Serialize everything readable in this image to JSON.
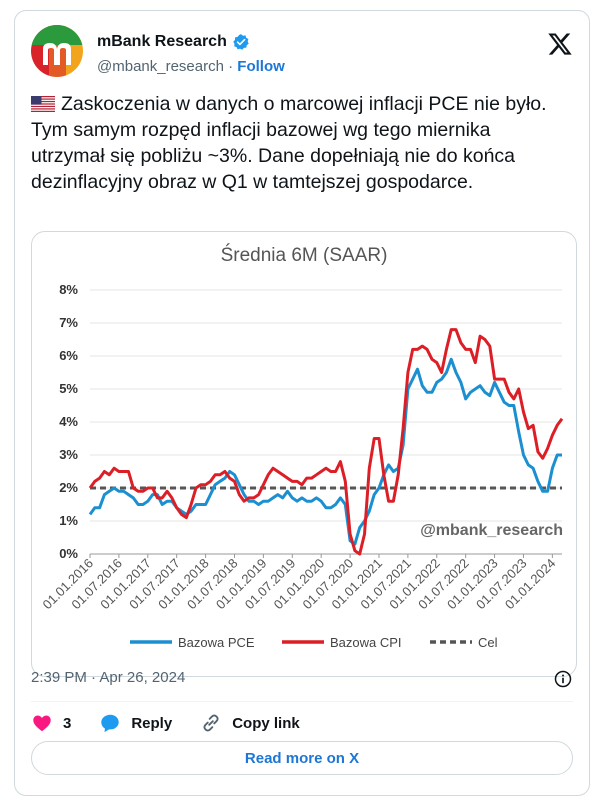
{
  "author": {
    "name": "mBank Research",
    "handle": "@mbank_research",
    "separator": "·",
    "follow_label": "Follow"
  },
  "tweet": {
    "text": "Zaskoczenia w danych o marcowej inflacji PCE nie było. Tym samym rozpęd inflacji bazowej wg tego miernika utrzymał się pobliżu ~3%. Dane dopełniają nie do końca dezinflacyjny obraz w Q1 w tamtejszej gospodarce."
  },
  "meta": {
    "time": "2:39 PM",
    "date": "Apr 26, 2024"
  },
  "actions": {
    "likes": "3",
    "reply_label": "Reply",
    "copy_label": "Copy link"
  },
  "read_more_label": "Read more on X",
  "colors": {
    "pce": "#1b8fd0",
    "cpi": "#dc1f26",
    "target": "#555555",
    "link": "#1d77d6",
    "like": "#f91880"
  },
  "chart_data": {
    "type": "line",
    "title": "Średnia 6M (SAAR)",
    "watermark": "@mbank_research",
    "ylim": [
      0,
      8
    ],
    "y_ticks": [
      "0%",
      "1%",
      "2%",
      "3%",
      "4%",
      "5%",
      "6%",
      "7%",
      "8%"
    ],
    "x_ticks": [
      "01.01.2016",
      "01.07.2016",
      "01.01.2017",
      "01.07.2017",
      "01.01.2018",
      "01.07.2018",
      "01.01.2019",
      "01.07.2019",
      "01.01.2020",
      "01.07.2020",
      "01.01.2021",
      "01.07.2021",
      "01.01.2022",
      "01.07.2022",
      "01.01.2023",
      "01.07.2023",
      "01.01.2024"
    ],
    "x_start": "2016-01",
    "legend_position": "bottom",
    "series": [
      {
        "name": "Bazowa PCE",
        "color": "#1b8fd0",
        "values": [
          1.2,
          1.4,
          1.4,
          1.8,
          1.9,
          2.0,
          1.9,
          1.9,
          1.8,
          1.7,
          1.5,
          1.5,
          1.6,
          1.8,
          1.8,
          1.5,
          1.6,
          1.6,
          1.4,
          1.3,
          1.2,
          1.3,
          1.5,
          1.5,
          1.5,
          1.8,
          2.1,
          2.2,
          2.3,
          2.5,
          2.4,
          2.1,
          1.8,
          1.6,
          1.6,
          1.5,
          1.6,
          1.6,
          1.7,
          1.8,
          1.7,
          1.9,
          1.7,
          1.6,
          1.7,
          1.6,
          1.6,
          1.7,
          1.6,
          1.4,
          1.4,
          1.5,
          1.7,
          1.5,
          0.4,
          0.3,
          0.8,
          1.0,
          1.3,
          1.8,
          2.0,
          2.4,
          2.7,
          2.5,
          2.6,
          3.3,
          5.0,
          5.3,
          5.6,
          5.1,
          4.9,
          4.9,
          5.2,
          5.3,
          5.5,
          5.9,
          5.5,
          5.2,
          4.7,
          4.9,
          5.0,
          5.1,
          4.9,
          4.8,
          5.2,
          4.9,
          4.6,
          4.5,
          4.5,
          3.7,
          3.0,
          2.7,
          2.6,
          2.2,
          1.9,
          1.9,
          2.6,
          3.0,
          3.0
        ]
      },
      {
        "name": "Bazowa CPI",
        "color": "#dc1f26",
        "values": [
          2.0,
          2.2,
          2.3,
          2.5,
          2.4,
          2.6,
          2.5,
          2.5,
          2.5,
          2.0,
          1.9,
          1.9,
          2.0,
          2.0,
          1.7,
          1.7,
          1.9,
          1.7,
          1.4,
          1.2,
          1.1,
          1.5,
          2.0,
          2.1,
          2.1,
          2.2,
          2.4,
          2.4,
          2.5,
          2.3,
          2.2,
          1.8,
          1.6,
          1.7,
          1.7,
          1.8,
          2.1,
          2.4,
          2.6,
          2.5,
          2.4,
          2.3,
          2.2,
          2.2,
          2.1,
          2.3,
          2.3,
          2.4,
          2.5,
          2.6,
          2.5,
          2.5,
          2.8,
          2.2,
          0.6,
          0.1,
          0.0,
          0.6,
          2.6,
          3.5,
          3.5,
          2.4,
          1.6,
          1.6,
          2.4,
          3.8,
          5.5,
          6.2,
          6.2,
          6.3,
          6.2,
          5.9,
          5.8,
          5.5,
          6.2,
          6.8,
          6.8,
          6.4,
          6.2,
          6.2,
          5.8,
          6.6,
          6.5,
          6.3,
          5.3,
          5.3,
          5.3,
          4.9,
          4.7,
          5.0,
          4.3,
          3.8,
          3.9,
          3.1,
          2.9,
          3.2,
          3.6,
          3.9,
          4.1
        ]
      },
      {
        "name": "Cel",
        "color": "#555555",
        "values": [
          2.0,
          2.0
        ]
      }
    ]
  }
}
